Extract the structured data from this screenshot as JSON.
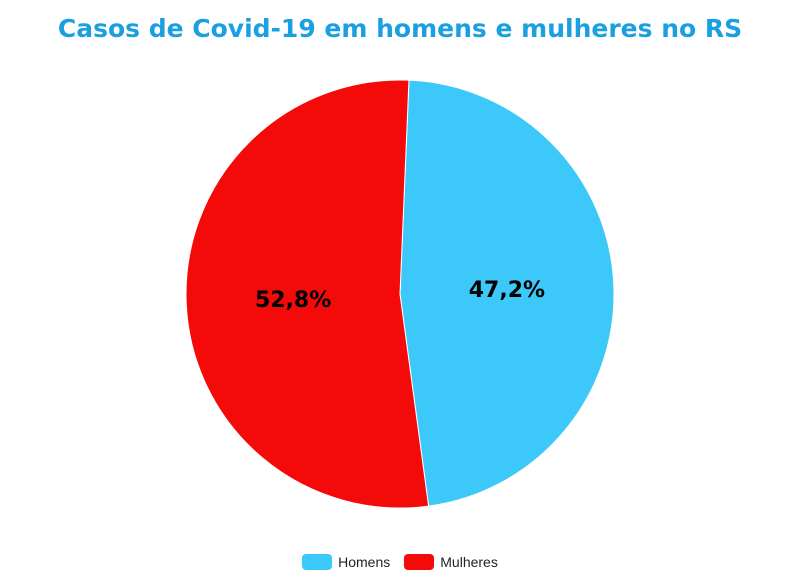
{
  "chart_data": {
    "type": "pie",
    "title": "Casos de Covid-19 em homens e mulheres no RS",
    "slices": [
      {
        "name": "Homens",
        "value": 47.2,
        "label": "47,2%",
        "color": "#3cc8f8"
      },
      {
        "name": "Mulheres",
        "value": 52.8,
        "label": "52,8%",
        "color": "#f50a0a"
      }
    ],
    "legend_position": "bottom"
  }
}
